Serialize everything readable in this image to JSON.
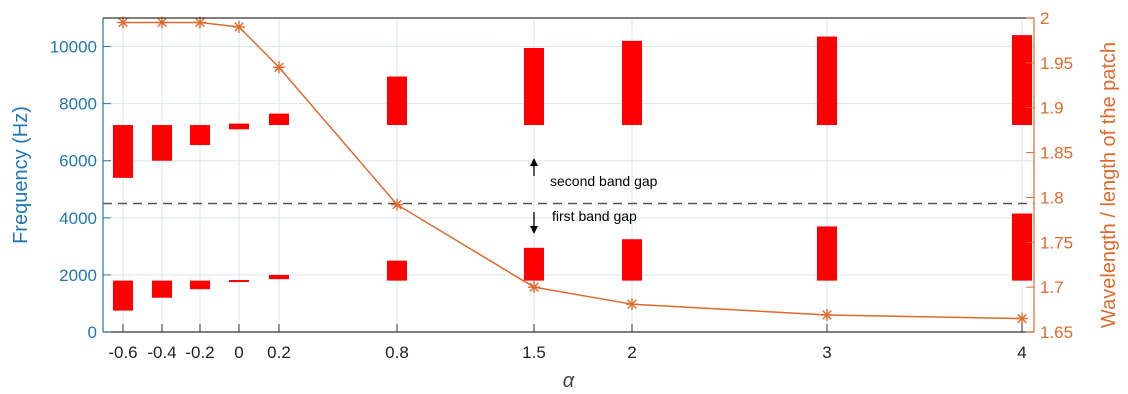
{
  "chart_data": {
    "type": "bar",
    "xlabel": "α",
    "ylabel_left": "Frequency (Hz)",
    "ylabel_right": "Wavelength / length of the patch",
    "x_ticks": [
      "-0.6",
      "-0.4",
      "-0.2",
      "0",
      "0.2",
      "0.8",
      "1.5",
      "2",
      "3",
      "4"
    ],
    "x_positions": [
      -0.6,
      -0.4,
      -0.2,
      0,
      0.2,
      0.8,
      1.5,
      2,
      3,
      4
    ],
    "ylim_left": [
      0,
      11000
    ],
    "ylim_right": [
      1.65,
      2.0
    ],
    "y_left_ticks": [
      0,
      2000,
      4000,
      6000,
      8000,
      10000
    ],
    "y_right_ticks": [
      1.65,
      1.7,
      1.75,
      1.8,
      1.85,
      1.9,
      1.95,
      2.0
    ],
    "y_left_tick_labels": [
      "0",
      "2000",
      "4000",
      "6000",
      "8000",
      "10000"
    ],
    "y_right_tick_labels": [
      "1.65",
      "1.7",
      "1.75",
      "1.8",
      "1.85",
      "1.9",
      "1.95",
      "2"
    ],
    "grid": true,
    "band_gaps": {
      "first": [
        {
          "alpha": -0.6,
          "low": 750,
          "high": 1800
        },
        {
          "alpha": -0.4,
          "low": 1200,
          "high": 1800
        },
        {
          "alpha": -0.2,
          "low": 1500,
          "high": 1800
        },
        {
          "alpha": 0,
          "low": 1750,
          "high": 1820
        },
        {
          "alpha": 0.2,
          "low": 1850,
          "high": 2000
        },
        {
          "alpha": 0.8,
          "low": 1800,
          "high": 2500
        },
        {
          "alpha": 1.5,
          "low": 1800,
          "high": 2950
        },
        {
          "alpha": 2,
          "low": 1800,
          "high": 3250
        },
        {
          "alpha": 3,
          "low": 1800,
          "high": 3700
        },
        {
          "alpha": 4,
          "low": 1800,
          "high": 4150
        }
      ],
      "second": [
        {
          "alpha": -0.6,
          "low": 5400,
          "high": 7250
        },
        {
          "alpha": -0.4,
          "low": 6000,
          "high": 7250
        },
        {
          "alpha": -0.2,
          "low": 6550,
          "high": 7250
        },
        {
          "alpha": 0,
          "low": 7100,
          "high": 7300
        },
        {
          "alpha": 0.2,
          "low": 7250,
          "high": 7650
        },
        {
          "alpha": 0.8,
          "low": 7250,
          "high": 8950
        },
        {
          "alpha": 1.5,
          "low": 7250,
          "high": 9950
        },
        {
          "alpha": 2,
          "low": 7250,
          "high": 10200
        },
        {
          "alpha": 3,
          "low": 7250,
          "high": 10350
        },
        {
          "alpha": 4,
          "low": 7250,
          "high": 10400
        }
      ]
    },
    "wavelength_series": {
      "axis": "right",
      "values": [
        1.995,
        1.995,
        1.995,
        1.99,
        1.945,
        1.792,
        1.7,
        1.681,
        1.669,
        1.665
      ]
    },
    "reference_line": {
      "value": 4500,
      "style": "dashed"
    },
    "annotations": [
      {
        "text": "second band gap",
        "direction": "up"
      },
      {
        "text": "first band gap",
        "direction": "down"
      }
    ],
    "colors": {
      "bars": "#ff0000",
      "left_axis": "#1f77b4",
      "right_axis": "#e06a2c",
      "line": "#e06a2c",
      "grid": "#dbe6ef",
      "dashed": "#555555"
    }
  }
}
